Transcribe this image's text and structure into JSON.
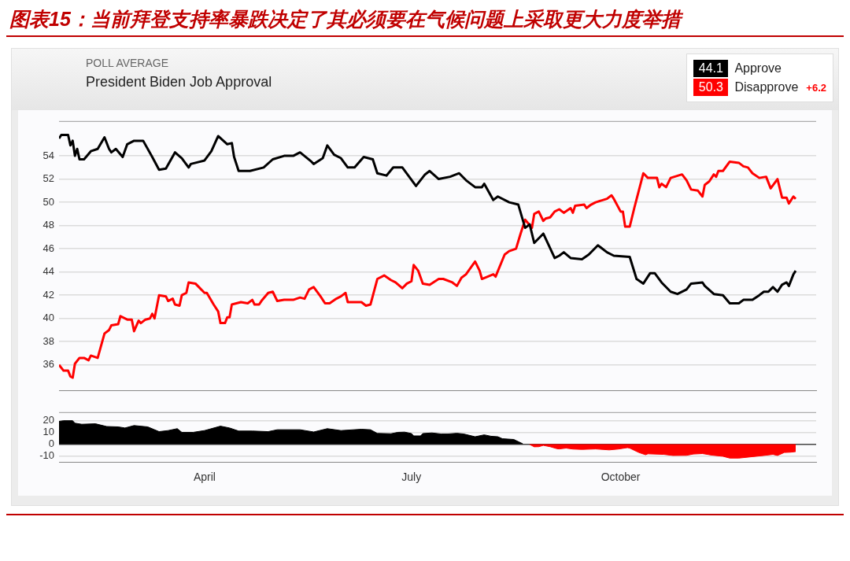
{
  "chart_data": [
    {
      "type": "line",
      "title": "图表15：当前拜登支持率暴跌决定了其必须要在气候问题上采取更大力度举措",
      "subtitle": "President Biden Job Approval",
      "annotations": [
        "POLL AVERAGE",
        "44.1",
        "50.3",
        "+6.2"
      ],
      "legend": "top right",
      "grid": "y",
      "tick_labels": "y",
      "xlim": [
        "--01-27",
        "--12-26"
      ],
      "ylim": [
        33.8,
        57
      ],
      "yticks": [
        36,
        38,
        40,
        42,
        44,
        46,
        48,
        50,
        52,
        54
      ],
      "series": [
        {
          "name": "Approve",
          "color": "#000000",
          "x": [
            "--01-27",
            "--01-28",
            "--01-31",
            "--02-01",
            "--02-02",
            "--02-03",
            "--02-04",
            "--02-05",
            "--02-07",
            "--02-10",
            "--02-13",
            "--02-16",
            "--02-18",
            "--02-19",
            "--02-21",
            "--02-24",
            "--02-26",
            "--03-01",
            "--03-05",
            "--03-09",
            "--03-12",
            "--03-15",
            "--03-19",
            "--03-22",
            "--03-25",
            "--03-26",
            "--04-01",
            "--04-04",
            "--04-07",
            "--04-11",
            "--04-13",
            "--04-14",
            "--04-16",
            "--04-21",
            "--04-27",
            "--05-01",
            "--05-06",
            "--05-10",
            "--05-13",
            "--05-18",
            "--05-19",
            "--05-23",
            "--05-25",
            "--05-28",
            "--05-31",
            "--06-03",
            "--06-06",
            "--06-10",
            "--06-14",
            "--06-16",
            "--06-20",
            "--06-23",
            "--06-27",
            "--07-03",
            "--07-07",
            "--07-09",
            "--07-13",
            "--07-18",
            "--07-22",
            "--07-25",
            "--07-29",
            "--08-01",
            "--08-02",
            "--08-06",
            "--08-08",
            "--08-13",
            "--08-17",
            "--08-20",
            "--08-22",
            "--08-24",
            "--08-28",
            "--09-02",
            "--09-04",
            "--09-06",
            "--09-09",
            "--09-14",
            "--09-17",
            "--09-21",
            "--09-25",
            "--09-28",
            "--10-05",
            "--10-08",
            "--10-11",
            "--10-14",
            "--10-16",
            "--10-19",
            "--10-23",
            "--10-26",
            "--10-30",
            "--11-01",
            "--11-06",
            "--11-07",
            "--11-11",
            "--11-15",
            "--11-18",
            "--11-22",
            "--11-24",
            "--11-28",
            "--12-01",
            "--12-03",
            "--12-05",
            "--12-07",
            "--12-09",
            "--12-11",
            "--12-13",
            "--12-14",
            "--12-16",
            "--12-17"
          ],
          "values": [
            55.5,
            55.8,
            55.8,
            54.9,
            55.3,
            54,
            54.6,
            53.7,
            53.7,
            54.4,
            54.6,
            55.6,
            54.6,
            54.3,
            54.6,
            53.9,
            55,
            55.3,
            55.3,
            53.9,
            52.8,
            52.9,
            54.3,
            53.8,
            53,
            53.3,
            53.6,
            54.4,
            55.7,
            55,
            55.1,
            53.9,
            52.7,
            52.7,
            53,
            53.7,
            54,
            54,
            54.3,
            53.5,
            53.3,
            53.8,
            54.9,
            54.1,
            53.8,
            53,
            53,
            53.9,
            53.7,
            52.5,
            52.3,
            53,
            53,
            51.4,
            52.4,
            52.7,
            52,
            52.2,
            52.5,
            51.9,
            51.3,
            51.3,
            51.6,
            50.2,
            50.5,
            50,
            49.8,
            47.8,
            48.1,
            46.5,
            47.3,
            45.2,
            45.4,
            45.7,
            45.2,
            45.1,
            45.5,
            46.3,
            45.7,
            45.4,
            45.3,
            43.4,
            43,
            43.9,
            43.9,
            43.1,
            42.3,
            42.1,
            42.5,
            43,
            43.1,
            42.8,
            42.1,
            42,
            41.3,
            41.3,
            41.6,
            41.6,
            42,
            42.3,
            42.3,
            42.7,
            42.3,
            42.9,
            43.1,
            42.8,
            43.8,
            44.1
          ]
        },
        {
          "name": "Disapprove",
          "color": "#ff0000",
          "x": [
            "--01-27",
            "--01-29",
            "--01-31",
            "--02-01",
            "--02-02",
            "--02-03",
            "--02-05",
            "--02-07",
            "--02-09",
            "--02-10",
            "--02-13",
            "--02-16",
            "--02-18",
            "--02-19",
            "--02-22",
            "--02-23",
            "--02-26",
            "--02-28",
            "--03-01",
            "--03-03",
            "--03-04",
            "--03-06",
            "--03-08",
            "--03-09",
            "--03-10",
            "--03-12",
            "--03-15",
            "--03-16",
            "--03-18",
            "--03-19",
            "--03-21",
            "--03-22",
            "--03-24",
            "--03-25",
            "--03-28",
            "--04-01",
            "--04-02",
            "--04-05",
            "--04-07",
            "--04-08",
            "--04-10",
            "--04-11",
            "--04-12",
            "--04-13",
            "--04-17",
            "--04-20",
            "--04-22",
            "--04-23",
            "--04-25",
            "--04-26",
            "--04-29",
            "--05-01",
            "--05-03",
            "--05-06",
            "--05-10",
            "--05-13",
            "--05-15",
            "--05-17",
            "--05-18",
            "--05-19",
            "--05-22",
            "--05-24",
            "--05-26",
            "--05-29",
            "--05-31",
            "--06-02",
            "--06-03",
            "--06-09",
            "--06-11",
            "--06-13",
            "--06-16",
            "--06-19",
            "--06-22",
            "--06-24",
            "--06-27",
            "--06-29",
            "--07-01",
            "--07-02",
            "--07-04",
            "--07-06",
            "--07-09",
            "--07-13",
            "--07-15",
            "--07-19",
            "--07-21",
            "--07-23",
            "--07-25",
            "--07-29",
            "--07-31",
            "--08-01",
            "--08-06",
            "--08-07",
            "--08-11",
            "--08-13",
            "--08-16",
            "--08-18",
            "--08-20",
            "--08-23",
            "--08-24",
            "--08-26",
            "--08-28",
            "--08-29",
            "--08-31",
            "--09-02",
            "--09-04",
            "--09-06",
            "--09-09",
            "--09-10",
            "--09-11",
            "--09-15",
            "--09-16",
            "--09-18",
            "--09-20",
            "--09-25",
            "--09-27",
            "--09-28",
            "--10-01",
            "--10-02",
            "--10-03",
            "--10-05",
            "--10-07",
            "--10-11",
            "--10-13",
            "--10-17",
            "--10-18",
            "--10-19",
            "--10-21",
            "--10-23",
            "--10-28",
            "--10-30",
            "--11-01",
            "--11-04",
            "--11-06",
            "--11-07",
            "--11-09",
            "--11-11",
            "--11-12",
            "--11-13",
            "--11-15",
            "--11-18",
            "--11-22",
            "--11-24",
            "--11-26",
            "--11-28",
            "--12-01",
            "--12-04",
            "--12-06",
            "--12-09",
            "--12-11",
            "--12-13",
            "--12-14",
            "--12-16",
            "--12-17"
          ],
          "values": [
            36,
            35.5,
            35.5,
            35,
            34.9,
            36.1,
            36.6,
            36.6,
            36.4,
            36.8,
            36.6,
            38.7,
            39,
            39.4,
            39.5,
            40.2,
            39.9,
            39.9,
            38.9,
            39.8,
            39.6,
            39.9,
            40,
            40.4,
            40,
            42,
            41.9,
            41.5,
            41.7,
            41.2,
            41.1,
            42,
            42.2,
            43.1,
            43,
            42.2,
            42.2,
            41.2,
            40.6,
            39.6,
            39.6,
            40.1,
            40.1,
            41.2,
            41.4,
            41.3,
            41.6,
            41.2,
            41.2,
            41.5,
            42.2,
            42.3,
            41.5,
            41.6,
            41.6,
            41.8,
            41.7,
            42.5,
            42.6,
            42.7,
            41.9,
            41.3,
            41.3,
            41.7,
            41.9,
            42.2,
            41.4,
            41.4,
            41.1,
            41.2,
            43.4,
            43.7,
            43.3,
            43.1,
            42.6,
            43,
            43.2,
            44.6,
            44.1,
            43,
            42.9,
            43.4,
            43.4,
            43.1,
            42.8,
            43.5,
            43.8,
            44.9,
            44.1,
            43.4,
            43.8,
            43.6,
            45.5,
            45.8,
            46,
            47.3,
            48.5,
            47.8,
            49,
            49.2,
            48.4,
            48.6,
            48.7,
            49.2,
            49.4,
            49.1,
            49.5,
            49.1,
            49.7,
            49.8,
            49.5,
            49.8,
            50,
            50.3,
            50.6,
            50.3,
            49.2,
            49.2,
            47.9,
            47.9,
            49.5,
            52.5,
            52.1,
            52.1,
            51.3,
            51.6,
            51.3,
            52.1,
            52.4,
            51.9,
            51.1,
            51,
            50.5,
            51.5,
            51.8,
            52.4,
            52.2,
            52.7,
            52.7,
            53.5,
            53.4,
            53.1,
            53,
            52.5,
            52.1,
            52.2,
            51.2,
            52,
            50.4,
            50.4,
            49.9,
            50.5,
            50.3
          ]
        }
      ]
    },
    {
      "type": "area",
      "grid": "y",
      "xlim": [
        "--01-27",
        "--12-26"
      ],
      "xticks": [
        {
          "value": "--04-01",
          "label": "April"
        },
        {
          "value": "--07-01",
          "label": "July"
        },
        {
          "value": "--10-01",
          "label": "October"
        }
      ],
      "ylim": [
        -15,
        27
      ],
      "yticks": [
        -10,
        0,
        10,
        20
      ],
      "series": [
        {
          "color": "#000000",
          "x": [
            "--01-27",
            "--01-29",
            "--02-02",
            "--02-03",
            "--02-06",
            "--02-12",
            "--02-17",
            "--02-22",
            "--02-25",
            "--03-01",
            "--03-07",
            "--03-12",
            "--03-16",
            "--03-20",
            "--03-22",
            "--03-27",
            "--04-01",
            "--04-08",
            "--04-12",
            "--04-16",
            "--04-22",
            "--04-29",
            "--05-03",
            "--05-13",
            "--05-19",
            "--05-25",
            "--05-31",
            "--06-09",
            "--06-13",
            "--06-16",
            "--06-22",
            "--06-25",
            "--06-28",
            "--07-01",
            "--07-02",
            "--07-05",
            "--07-06",
            "--07-10",
            "--07-14",
            "--07-17",
            "--07-21",
            "--07-24",
            "--07-29",
            "--08-02",
            "--08-05",
            "--08-08",
            "--08-10",
            "--08-15",
            "--08-19"
          ],
          "values": [
            19.2,
            19.8,
            19.8,
            17.7,
            16.8,
            17.2,
            14.9,
            14.6,
            13.7,
            15.7,
            14.6,
            10.6,
            11.5,
            13.1,
            10,
            10,
            11.5,
            15.2,
            13.7,
            11.1,
            11.1,
            10.6,
            12.2,
            12.2,
            10.3,
            13.1,
            11.5,
            12.6,
            12.2,
            9.1,
            8.8,
            10,
            10.2,
            9,
            7,
            7,
            9,
            9.5,
            8.6,
            8.6,
            9.2,
            8.6,
            6.3,
            7.9,
            6.7,
            6.3,
            4.6,
            4,
            0.3
          ]
        },
        {
          "color": "#ff0000",
          "x": [
            "--08-22",
            "--08-24",
            "--08-26",
            "--08-28",
            "--08-31",
            "--09-03",
            "--09-04",
            "--09-07",
            "--09-10",
            "--09-14",
            "--09-20",
            "--09-26",
            "--09-30",
            "--10-04",
            "--10-05",
            "--10-09",
            "--10-12",
            "--10-13",
            "--10-20",
            "--10-24",
            "--10-30",
            "--11-02",
            "--11-06",
            "--11-10",
            "--11-15",
            "--11-18",
            "--11-22",
            "--11-28",
            "--12-03",
            "--12-07",
            "--12-09",
            "--12-12",
            "--12-15",
            "--12-17"
          ],
          "values": [
            -0.2,
            -2.2,
            -2.1,
            -1,
            -2.1,
            -3.8,
            -4,
            -3.3,
            -4.1,
            -4.4,
            -4,
            -4.8,
            -4.1,
            -2.9,
            -3.3,
            -7,
            -8.9,
            -8.1,
            -8.6,
            -9.5,
            -9.4,
            -8.3,
            -7.9,
            -9.2,
            -10.2,
            -11.7,
            -11.7,
            -10.5,
            -9.5,
            -8.6,
            -9.5,
            -7,
            -6.7,
            -6.2
          ]
        }
      ]
    }
  ]
}
